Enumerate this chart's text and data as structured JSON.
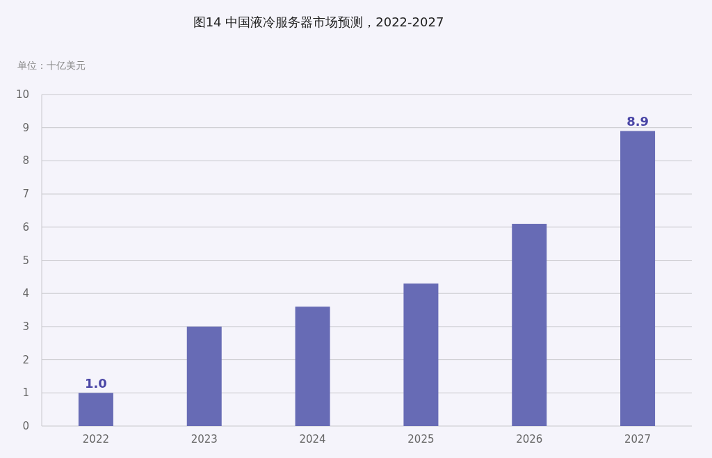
{
  "chart_data": {
    "type": "bar",
    "title": "图14 中国液冷服务器市场预测，2022-2027",
    "ylabel": "单位：十亿美元",
    "categories": [
      "2022",
      "2023",
      "2024",
      "2025",
      "2026",
      "2027"
    ],
    "values": [
      1.0,
      3.0,
      3.6,
      4.3,
      6.1,
      8.9
    ],
    "value_labels": [
      "1.0",
      null,
      null,
      null,
      null,
      "8.9"
    ],
    "color": "#676bb5",
    "ylim": [
      0,
      10
    ],
    "yticks": [
      0,
      1,
      2,
      3,
      4,
      5,
      6,
      7,
      8,
      9,
      10
    ],
    "grid": "y"
  }
}
